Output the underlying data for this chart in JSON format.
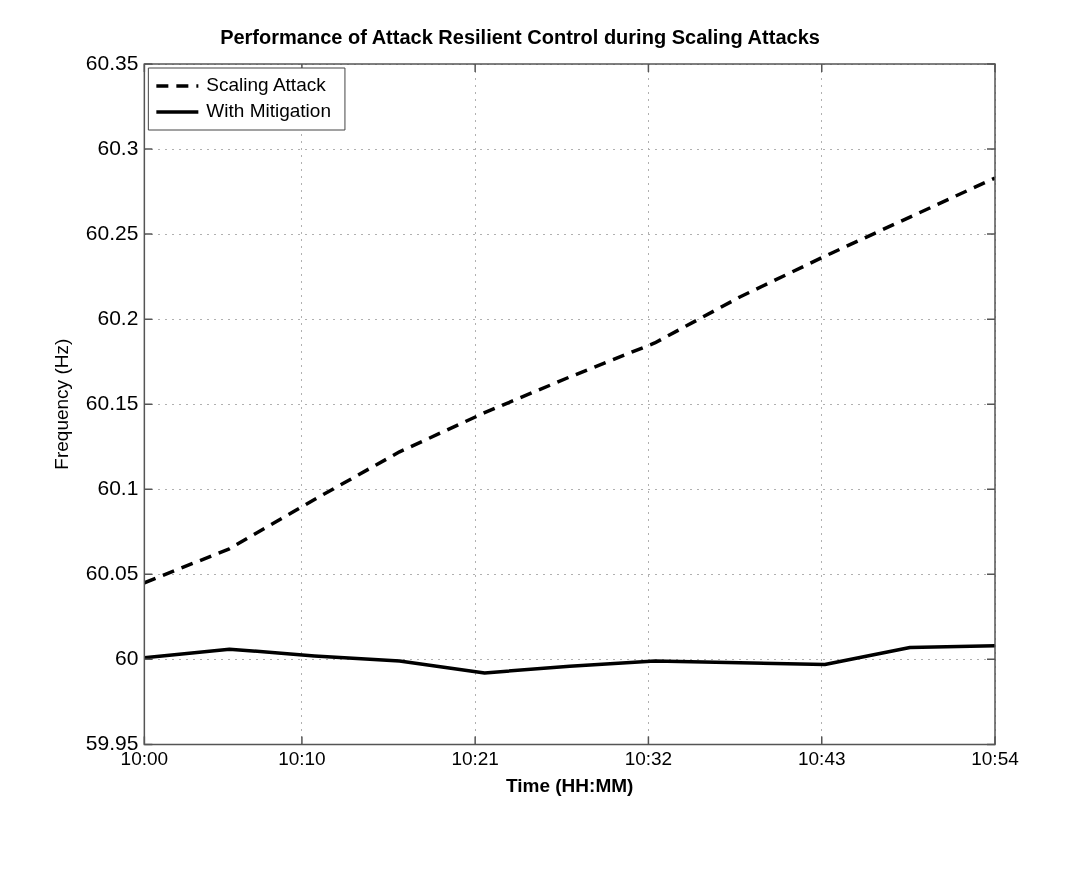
{
  "chart_data": {
    "type": "line",
    "title": "Performance of Attack Resilient Control during Scaling Attacks",
    "xlabel": "Time (HH:MM)",
    "ylabel": "Frequency (Hz)",
    "x": [
      10,
      10.09,
      10.18,
      10.27,
      10.36,
      10.45,
      10.54,
      10.63,
      10.72,
      10.81,
      10.9
    ],
    "series": [
      {
        "name": "Scaling Attack",
        "color": "#000000",
        "line_style": "dashed",
        "values": [
          60.045,
          60.065,
          60.094,
          60.122,
          60.145,
          60.166,
          60.186,
          60.213,
          60.237,
          60.26,
          60.283
        ]
      },
      {
        "name": "With Mitigation",
        "color": "#000000",
        "line_style": "solid",
        "values": [
          60.001,
          60.006,
          60.002,
          59.999,
          59.992,
          59.996,
          59.999,
          59.998,
          59.997,
          60.007,
          60.008
        ]
      }
    ],
    "xlim": [
      10,
      10.9
    ],
    "xticks": [
      {
        "value": 10,
        "label": "10:00"
      },
      {
        "value": 10.1667,
        "label": "10:10"
      },
      {
        "value": 10.35,
        "label": "10:21"
      },
      {
        "value": 10.5333,
        "label": "10:32"
      },
      {
        "value": 10.7167,
        "label": "10:43"
      },
      {
        "value": 10.9,
        "label": "10:54"
      }
    ],
    "ylim": [
      59.95,
      60.35
    ],
    "yticks": [
      59.95,
      60,
      60.05,
      60.1,
      60.15,
      60.2,
      60.25,
      60.3,
      60.35
    ],
    "grid": true,
    "legend": "top left",
    "marker": "none"
  }
}
